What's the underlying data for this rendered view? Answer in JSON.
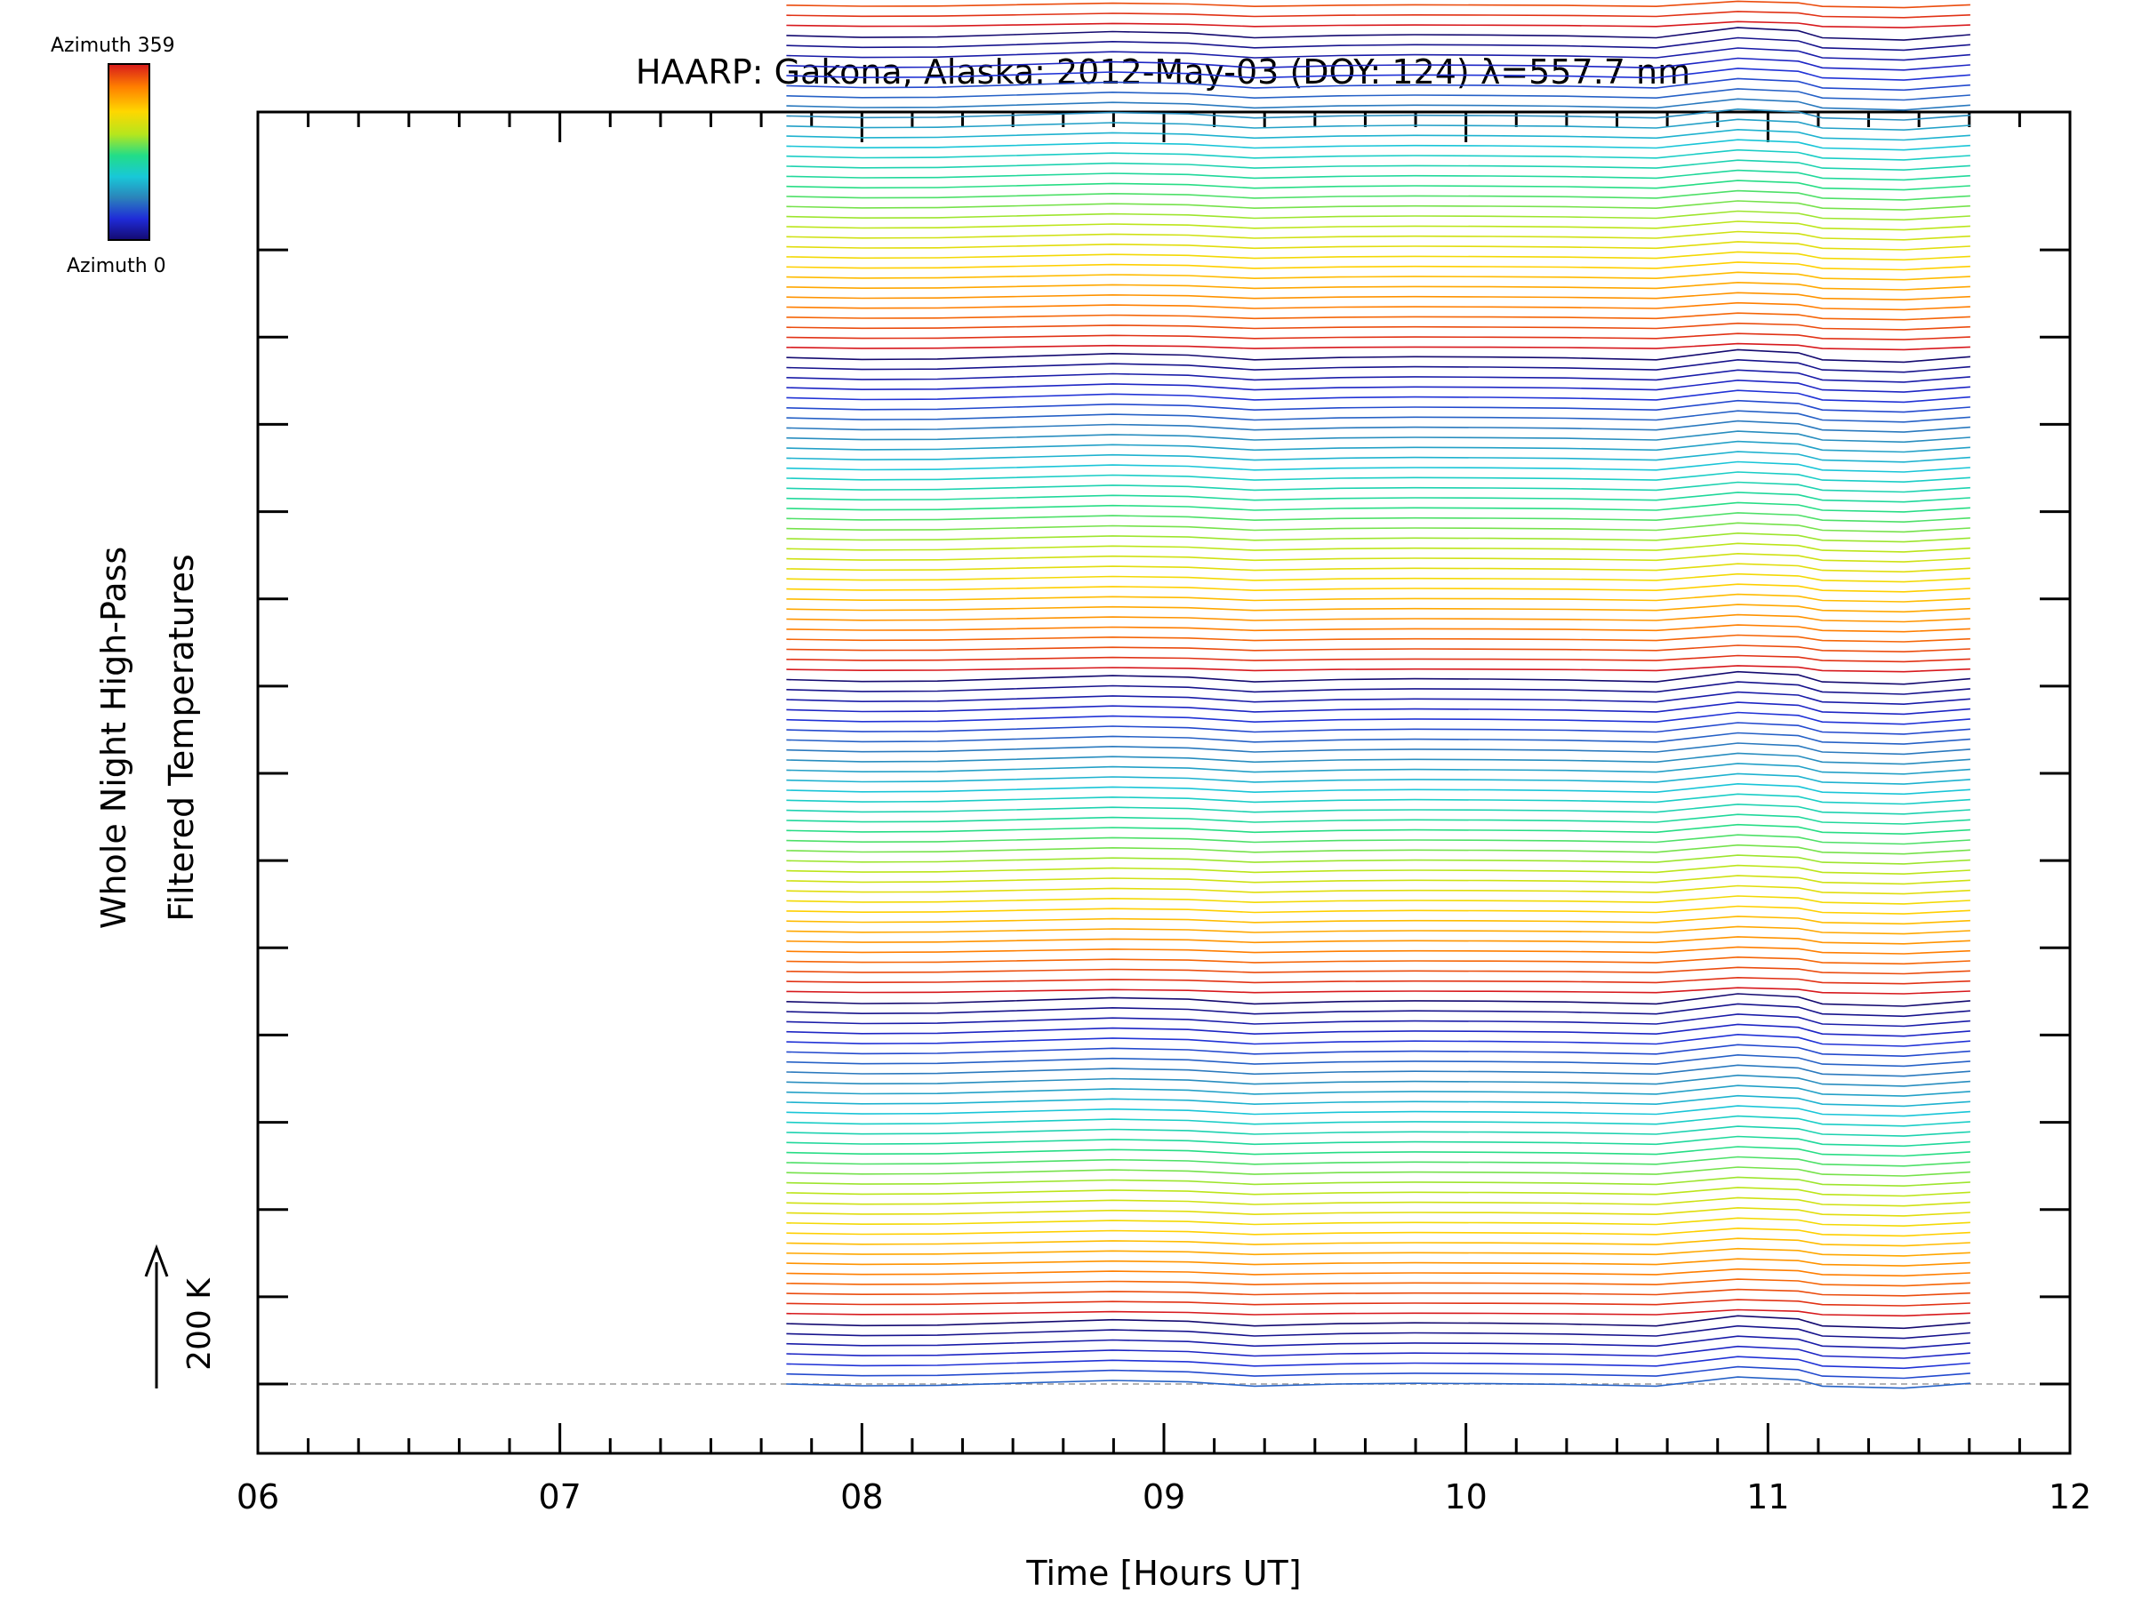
{
  "chart_data": {
    "type": "line",
    "title": "HAARP: Gakona,  Alaska: 2012-May-03 (DOY: 124) λ=557.7 nm",
    "xlabel": "Time [Hours UT]",
    "ylabel_line1": "Whole Night High-Pass",
    "ylabel_line2": "Filtered Temperatures",
    "xlim": [
      6,
      12
    ],
    "x_ticks": [
      "06",
      "07",
      "08",
      "09",
      "10",
      "11",
      "12"
    ],
    "y_ticks_count": 14,
    "scale_bar_label": "200 K",
    "scale_bar_value_K": 200,
    "y_axis_values_printed": false,
    "colorbar": {
      "top_label": "Azimuth  359",
      "bottom_label": "Azimuth  0",
      "colors": [
        "#d7191c",
        "#ff7f00",
        "#ffd700",
        "#b5e61d",
        "#22dd88",
        "#18c8d8",
        "#2b83ba",
        "#1f2bd8",
        "#140a70"
      ]
    },
    "series_count": 140,
    "series_offset_K": 14.8,
    "azimuth_cycle_length": 32,
    "azimuth_cycle_start_index": 6,
    "time_points": [
      7.75,
      8.0,
      8.25,
      8.5,
      8.83,
      9.08,
      9.3,
      9.58,
      9.83,
      10.08,
      10.33,
      10.63,
      10.9,
      11.1,
      11.18,
      11.45,
      11.67
    ],
    "common_profile_K": [
      0,
      -2.5,
      -2,
      1,
      5,
      3,
      -3,
      0,
      1,
      0.5,
      -0.5,
      -3,
      10,
      6,
      -3,
      -6,
      1
    ],
    "baseline": 0,
    "grid": false,
    "legend": "colorbar top-left"
  }
}
